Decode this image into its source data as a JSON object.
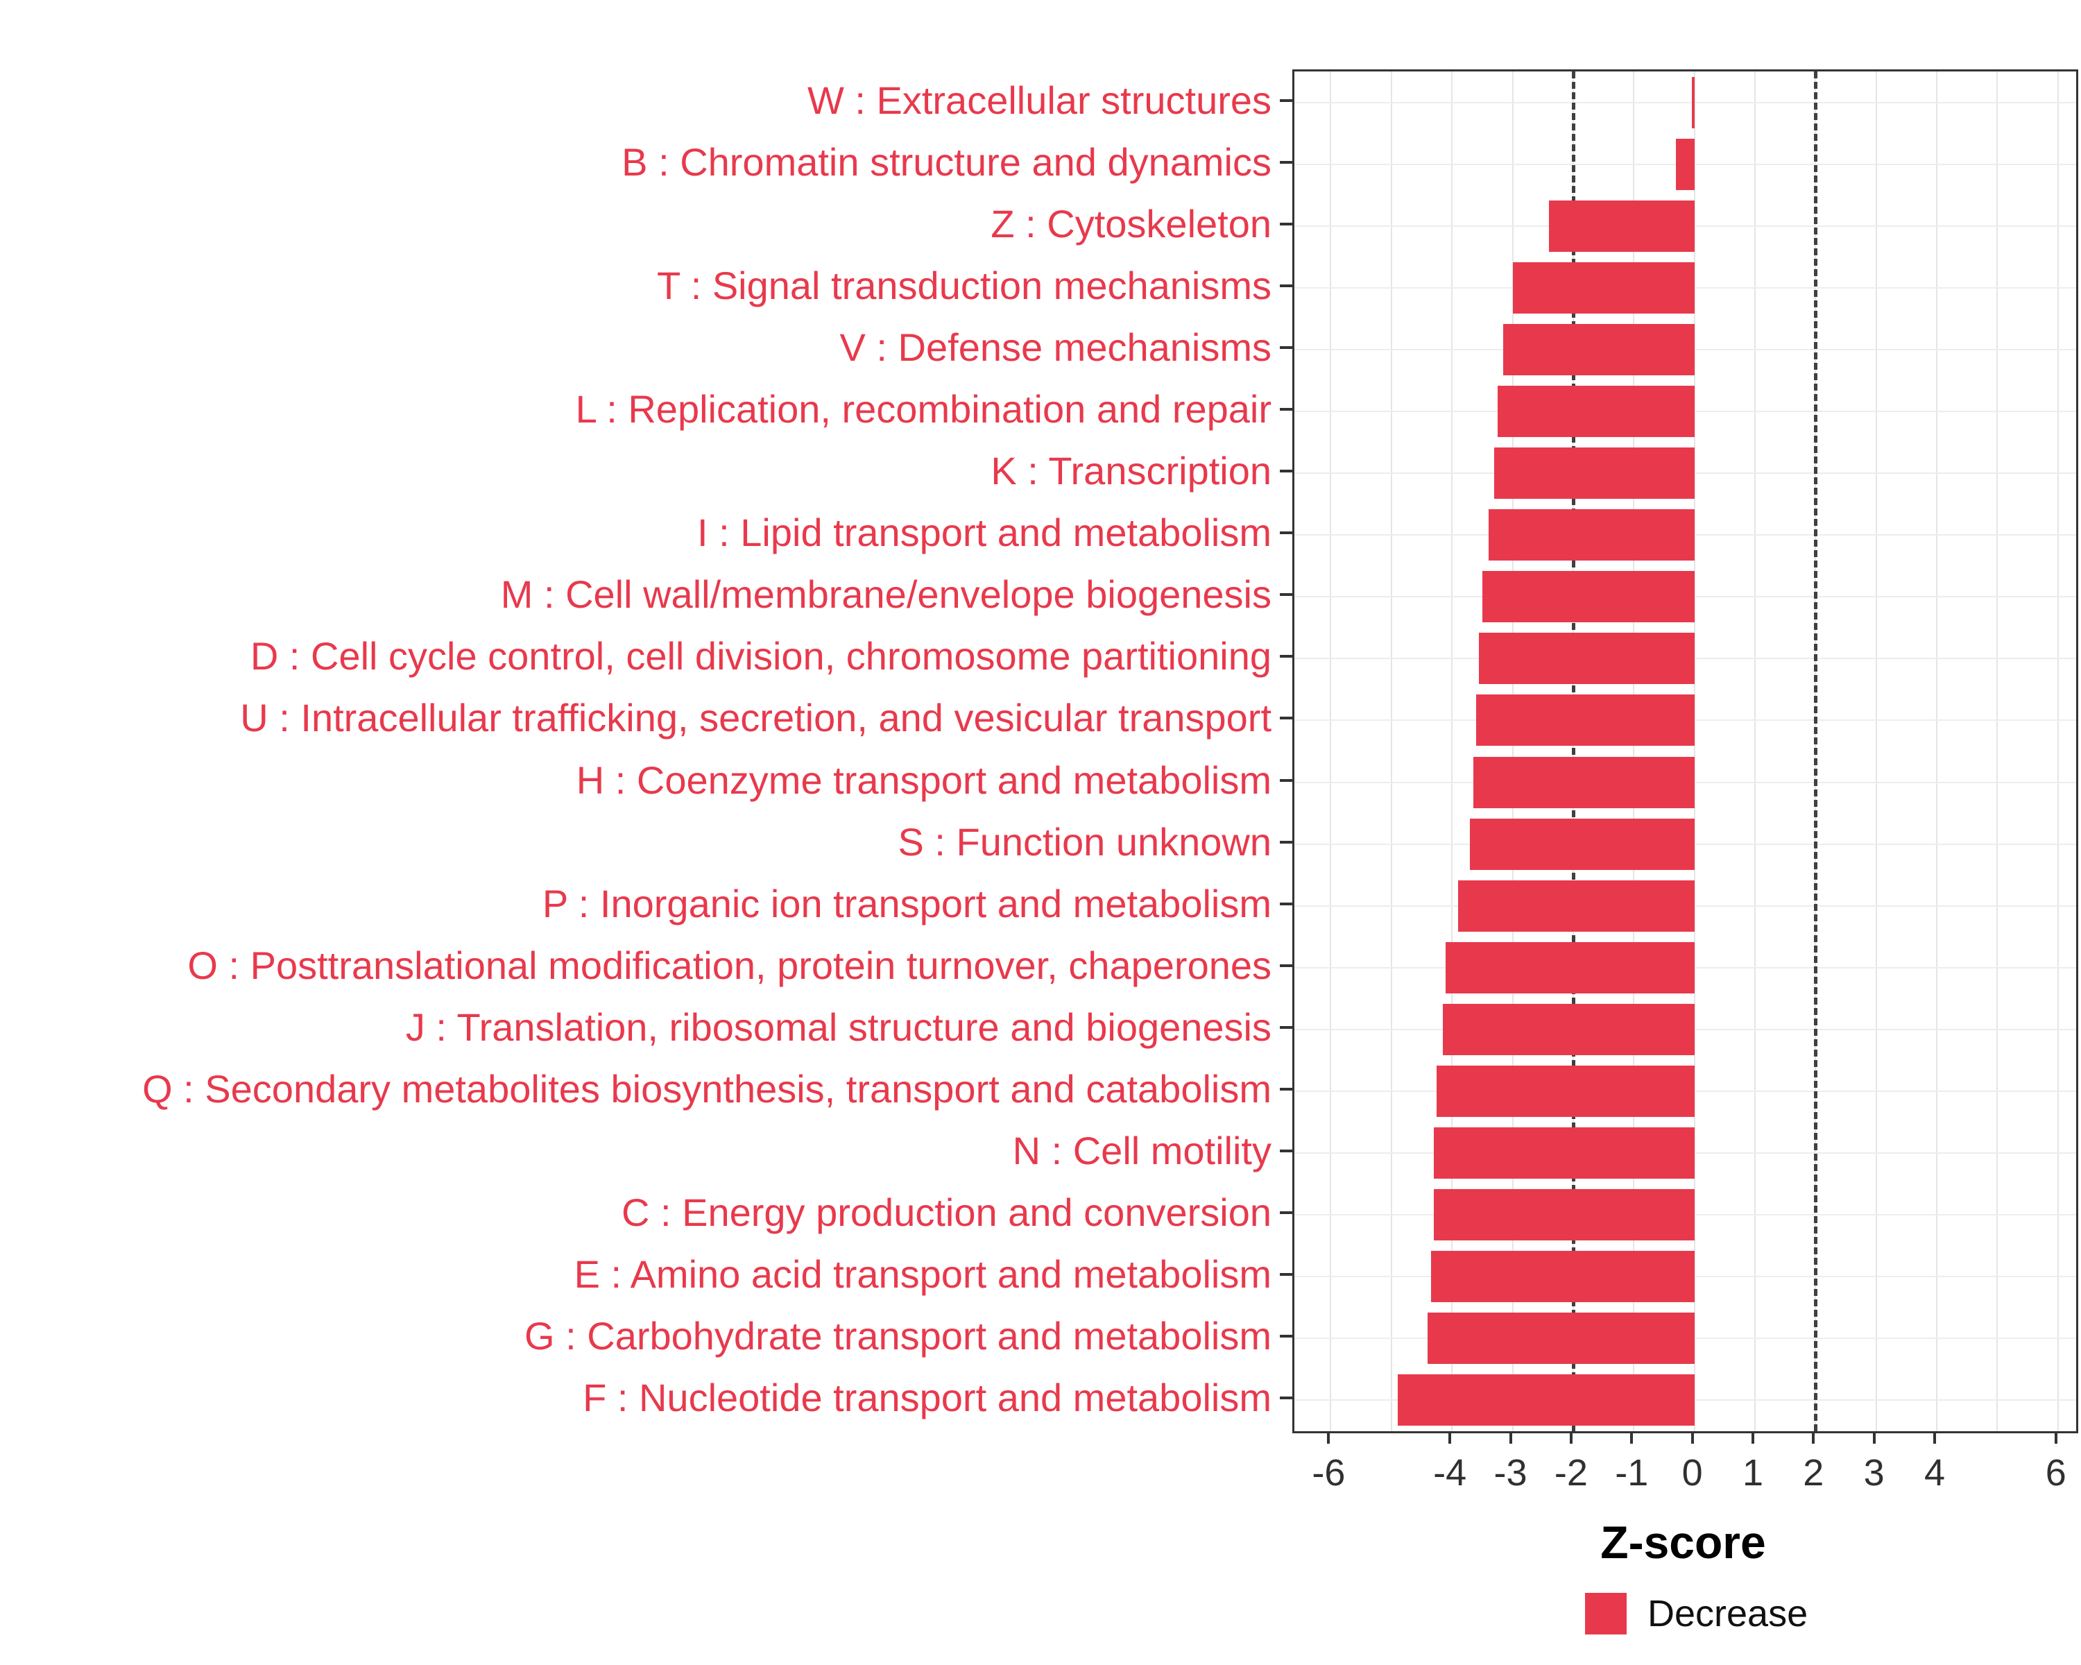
{
  "chart_data": {
    "type": "bar",
    "orientation": "horizontal",
    "title": "",
    "xlabel": "Z-score",
    "ylabel": "",
    "xlim": [
      -6.6,
      6.3
    ],
    "x_ticks": [
      -6,
      -4,
      -3,
      -2,
      -1,
      0,
      1,
      2,
      3,
      4,
      6
    ],
    "grid_x": [
      -6,
      -5,
      -4,
      -3,
      -2,
      -1,
      0,
      1,
      2,
      3,
      4,
      5,
      6
    ],
    "reference_lines": [
      -2,
      2
    ],
    "grid": true,
    "colors": {
      "bar": "#E8394C",
      "category_label": "#E8394C",
      "tick_label": "#303030",
      "axis_title": "#000000",
      "reference_line": "#404040",
      "grid": "#E5E5E5",
      "panel_border": "#333333"
    },
    "legend": {
      "label": "Decrease",
      "color": "#E8394C",
      "position": "bottom-right"
    },
    "categories": [
      "W : Extracellular structures",
      "B : Chromatin structure and dynamics",
      "Z : Cytoskeleton",
      "T : Signal transduction mechanisms",
      "V : Defense mechanisms",
      "L : Replication, recombination and repair",
      "K : Transcription",
      "I : Lipid transport and metabolism",
      "M : Cell wall/membrane/envelope biogenesis",
      "D : Cell cycle control, cell division, chromosome partitioning",
      "U : Intracellular trafficking, secretion, and vesicular transport",
      "H : Coenzyme transport and metabolism",
      "S : Function unknown",
      "P : Inorganic ion transport and metabolism",
      "O : Posttranslational modification, protein turnover, chaperones",
      "J : Translation, ribosomal structure and biogenesis",
      "Q : Secondary metabolites biosynthesis, transport and catabolism",
      "N : Cell motility",
      "C : Energy production and conversion",
      "E : Amino acid transport and metabolism",
      "G : Carbohydrate transport and metabolism",
      "F : Nucleotide transport and metabolism"
    ],
    "values": [
      -0.04,
      -0.3,
      -2.4,
      -3.0,
      -3.15,
      -3.25,
      -3.3,
      -3.4,
      -3.5,
      -3.55,
      -3.6,
      -3.65,
      -3.7,
      -3.9,
      -4.1,
      -4.15,
      -4.25,
      -4.3,
      -4.3,
      -4.35,
      -4.4,
      -4.9
    ]
  }
}
